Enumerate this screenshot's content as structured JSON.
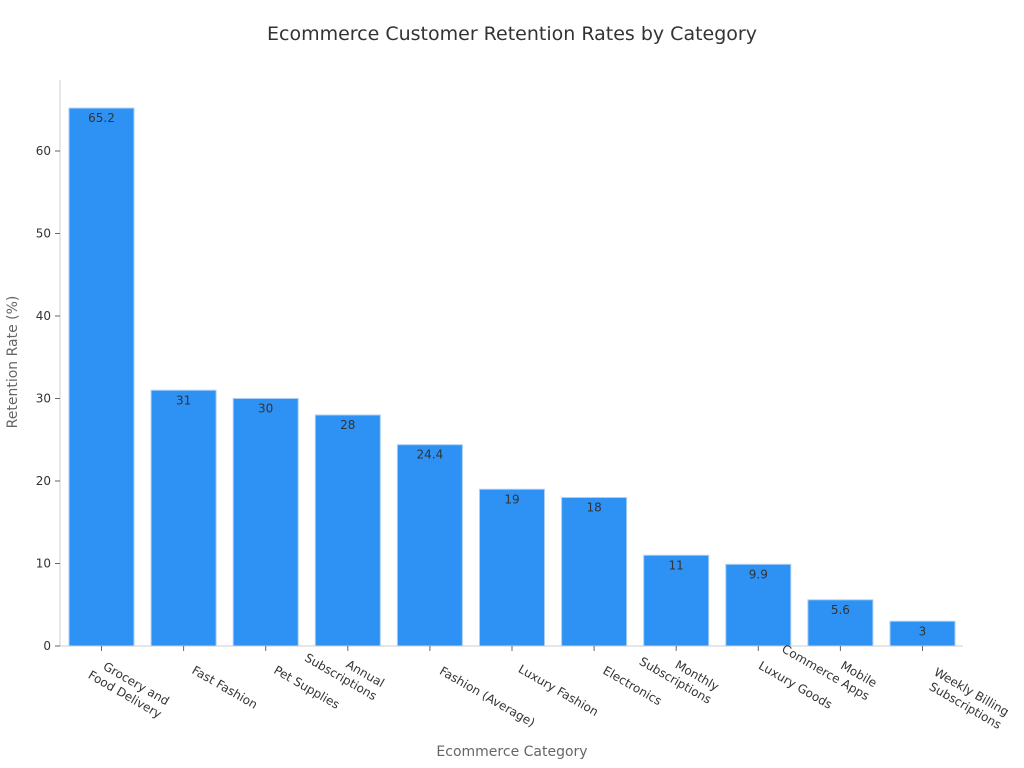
{
  "chart_data": {
    "type": "bar",
    "title": "Ecommerce Customer Retention Rates by Category",
    "xlabel": "Ecommerce Category",
    "ylabel": "Retention Rate (%)",
    "ylim": [
      0,
      68.5
    ],
    "yticks": [
      0,
      10,
      20,
      30,
      40,
      50,
      60
    ],
    "grid": false,
    "bar_color": "#2e92f5",
    "categories": [
      [
        "Grocery and",
        "Food Delivery"
      ],
      [
        "Fast Fashion"
      ],
      [
        "Pet Supplies"
      ],
      [
        "Annual",
        "Subscriptions"
      ],
      [
        "Fashion (Average)"
      ],
      [
        "Luxury Fashion"
      ],
      [
        "Electronics"
      ],
      [
        "Monthly",
        "Subscriptions"
      ],
      [
        "Luxury Goods"
      ],
      [
        "Mobile",
        "Commerce Apps"
      ],
      [
        "Weekly Billing",
        "Subscriptions"
      ]
    ],
    "values": [
      65.2,
      31,
      30,
      28,
      24.4,
      19,
      18,
      11,
      9.9,
      5.6,
      3
    ]
  }
}
